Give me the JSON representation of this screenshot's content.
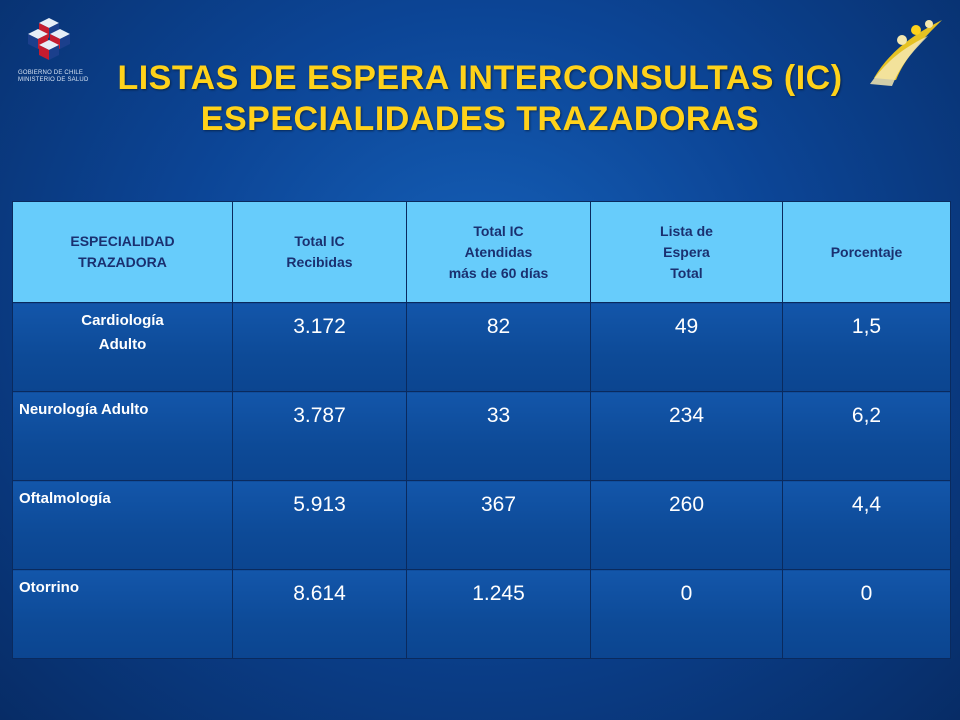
{
  "header": {
    "title_line1": "LISTAS DE ESPERA INTERCONSULTAS (IC)",
    "title_line2": "ESPECIALIDADES TRAZADORAS",
    "logo_text": "GOBIERNO DE CHILE\nMINISTERIO DE SALUD"
  },
  "table": {
    "columns": [
      "ESPECIALIDAD\nTRAZADORA",
      "Total IC\nRecibidas",
      "Total IC\nAtendidas\nmás de 60 días",
      "Lista de\nEspera\nTotal",
      "Porcentaje"
    ],
    "rows": [
      {
        "especialidad": "Cardiología\nAdulto",
        "recibidas": "3.172",
        "atendidas": "82",
        "lista": "49",
        "porcentaje": "1,5"
      },
      {
        "especialidad": "Neurología Adulto",
        "recibidas": "3.787",
        "atendidas": "33",
        "lista": "234",
        "porcentaje": "6,2"
      },
      {
        "especialidad": "Oftalmología",
        "recibidas": "5.913",
        "atendidas": "367",
        "lista": "260",
        "porcentaje": "4,4"
      },
      {
        "especialidad": "Otorrino",
        "recibidas": "8.614",
        "atendidas": "1.245",
        "lista": "0",
        "porcentaje": "0"
      }
    ]
  },
  "colors": {
    "background": "#0c4596",
    "title": "#ffd21a",
    "header_cell": "#67ccfb",
    "header_text": "#1a3070",
    "body_text": "#ffffff"
  }
}
